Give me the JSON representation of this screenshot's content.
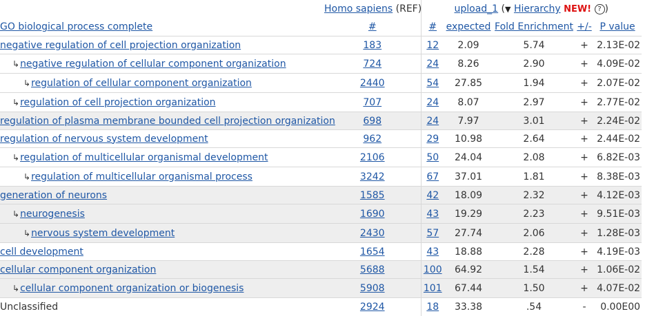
{
  "header": {
    "ref_label": "Homo sapiens",
    "ref_suffix": "(REF)",
    "upload_label": "upload_1",
    "paren_open": "(",
    "tri_glyph": "▼",
    "hierarchy_label": "Hierarchy",
    "new_label": "NEW!",
    "help_glyph": "?",
    "paren_close": ")"
  },
  "columns": {
    "term": "GO biological process complete",
    "ref_count": "#",
    "up_count": "#",
    "expected": "expected",
    "fold": "Fold Enrichment",
    "dir": "+/-",
    "pvalue": "P value"
  },
  "rows": [
    {
      "term": "negative regulation of cell projection organization",
      "ref": "183",
      "up": "12",
      "expected": "2.09",
      "fold": "5.74",
      "dir": "+",
      "p": "2.13E-02"
    },
    {
      "term": "negative regulation of cellular component organization",
      "ref": "724",
      "up": "24",
      "expected": "8.26",
      "fold": "2.90",
      "dir": "+",
      "p": "4.09E-02"
    },
    {
      "term": "regulation of cellular component organization",
      "ref": "2440",
      "up": "54",
      "expected": "27.85",
      "fold": "1.94",
      "dir": "+",
      "p": "2.07E-02"
    },
    {
      "term": "regulation of cell projection organization",
      "ref": "707",
      "up": "24",
      "expected": "8.07",
      "fold": "2.97",
      "dir": "+",
      "p": "2.77E-02"
    },
    {
      "term": "regulation of plasma membrane bounded cell projection organization",
      "ref": "698",
      "up": "24",
      "expected": "7.97",
      "fold": "3.01",
      "dir": "+",
      "p": "2.24E-02"
    },
    {
      "term": "regulation of nervous system development",
      "ref": "962",
      "up": "29",
      "expected": "10.98",
      "fold": "2.64",
      "dir": "+",
      "p": "2.44E-02"
    },
    {
      "term": "regulation of multicellular organismal development",
      "ref": "2106",
      "up": "50",
      "expected": "24.04",
      "fold": "2.08",
      "dir": "+",
      "p": "6.82E-03"
    },
    {
      "term": "regulation of multicellular organismal process",
      "ref": "3242",
      "up": "67",
      "expected": "37.01",
      "fold": "1.81",
      "dir": "+",
      "p": "8.38E-03"
    },
    {
      "term": "generation of neurons",
      "ref": "1585",
      "up": "42",
      "expected": "18.09",
      "fold": "2.32",
      "dir": "+",
      "p": "4.12E-03"
    },
    {
      "term": "neurogenesis",
      "ref": "1690",
      "up": "43",
      "expected": "19.29",
      "fold": "2.23",
      "dir": "+",
      "p": "9.51E-03"
    },
    {
      "term": "nervous system development",
      "ref": "2430",
      "up": "57",
      "expected": "27.74",
      "fold": "2.06",
      "dir": "+",
      "p": "1.28E-03"
    },
    {
      "term": "cell development",
      "ref": "1654",
      "up": "43",
      "expected": "18.88",
      "fold": "2.28",
      "dir": "+",
      "p": "4.19E-03"
    },
    {
      "term": "cellular component organization",
      "ref": "5688",
      "up": "100",
      "expected": "64.92",
      "fold": "1.54",
      "dir": "+",
      "p": "1.06E-02"
    },
    {
      "term": "cellular component organization or biogenesis",
      "ref": "5908",
      "up": "101",
      "expected": "67.44",
      "fold": "1.50",
      "dir": "+",
      "p": "4.07E-02"
    },
    {
      "term": "Unclassified",
      "ref": "2924",
      "up": "18",
      "expected": "33.38",
      "fold": ".54",
      "dir": "-",
      "p": "0.00E00"
    }
  ],
  "glyphs": {
    "child_arrow": "↳"
  },
  "colors": {
    "link": "#1f57a5",
    "new": "#dd1111",
    "shade": "#eeeeee"
  }
}
